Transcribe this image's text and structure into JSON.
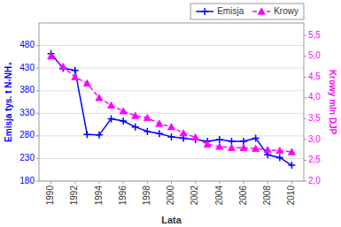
{
  "chart_data": {
    "type": "line",
    "x": [
      1990,
      1991,
      1992,
      1993,
      1994,
      1995,
      1996,
      1997,
      1998,
      1999,
      2000,
      2001,
      2002,
      2003,
      2004,
      2005,
      2006,
      2007,
      2008,
      2009,
      2010
    ],
    "series": [
      {
        "name": "Emisja",
        "color": "#0000ff",
        "marker": "plus",
        "line_style": "solid",
        "values": [
          462,
          430,
          425,
          283,
          282,
          318,
          313,
          300,
          290,
          285,
          278,
          275,
          272,
          268,
          272,
          268,
          268,
          275,
          238,
          232,
          215
        ]
      },
      {
        "name": "Krowy",
        "color": "#ff00ff",
        "marker": "triangle",
        "line_style": "dashed",
        "axis": "y2",
        "values": [
          5.0,
          4.75,
          4.5,
          4.35,
          4.0,
          3.82,
          3.68,
          3.57,
          3.52,
          3.38,
          3.3,
          3.15,
          3.05,
          2.88,
          2.83,
          2.8,
          2.8,
          2.78,
          2.75,
          2.73,
          2.7
        ]
      }
    ],
    "xlabel": "Lata",
    "ylabel": "Emisja tys. t N-NH₃",
    "y2label": "Krowy mln DJP",
    "xlim": [
      1989,
      2011
    ],
    "xticks": [
      1990,
      1992,
      1994,
      1996,
      1998,
      2000,
      2002,
      2004,
      2006,
      2008,
      2010
    ],
    "ylim": [
      180,
      530
    ],
    "yticks": [
      180,
      230,
      280,
      330,
      380,
      430,
      480
    ],
    "y2lim": [
      2.0,
      5.8
    ],
    "y2ticks": [
      {
        "value": 2.0,
        "label": "2,0"
      },
      {
        "value": 2.5,
        "label": "2,5"
      },
      {
        "value": 3.0,
        "label": "3,0"
      },
      {
        "value": 3.5,
        "label": "3,5"
      },
      {
        "value": 4.0,
        "label": "4,0"
      },
      {
        "value": 4.5,
        "label": "4,5"
      },
      {
        "value": 5.0,
        "label": "5,0"
      },
      {
        "value": 5.5,
        "label": "5,5"
      }
    ],
    "grid": true,
    "legend": "upper right"
  }
}
